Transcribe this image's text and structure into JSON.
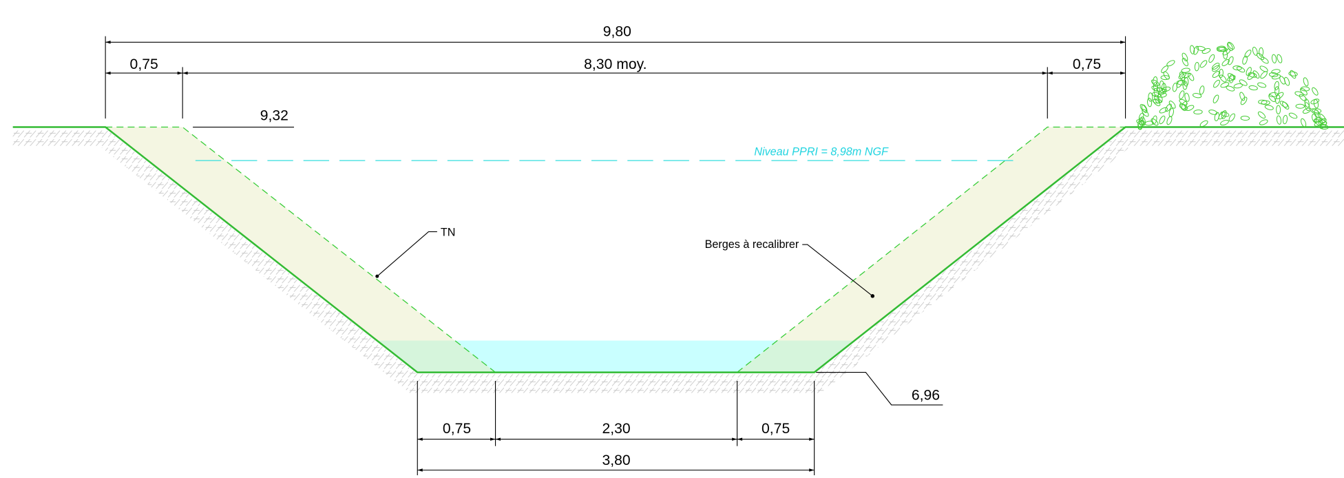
{
  "dimensions": {
    "total_width": "9,80",
    "left_berm_top": "0,75",
    "top_width": "8,30 moy.",
    "right_berm_top": "0,75",
    "left_berm_bottom": "0,75",
    "bed_width": "2,30",
    "right_berm_bottom": "0,75",
    "bottom_width": "3,80"
  },
  "levels": {
    "top": "9,32",
    "bottom": "6,96",
    "flood": "Niveau PPRI = 8,98m NGF"
  },
  "labels": {
    "ground": "TN",
    "banks": "Berges à recalibrer"
  }
}
